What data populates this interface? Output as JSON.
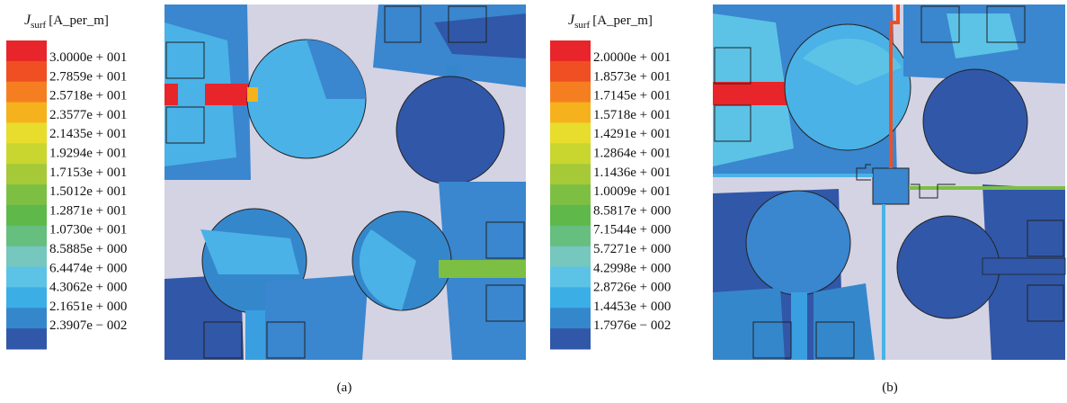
{
  "panels": [
    {
      "legend_symbol": "J",
      "legend_subscript": "surf",
      "legend_unit": "[A_per_m]",
      "legend_labels": [
        "3.0000e + 001",
        "2.7859e + 001",
        "2.5718e + 001",
        "2.3577e + 001",
        "2.1435e + 001",
        "1.9294e + 001",
        "1.7153e + 001",
        "1.5012e + 001",
        "1.2871e + 001",
        "1.0730e + 001",
        "8.5885e + 000",
        "6.4474e + 000",
        "4.3062e + 000",
        "2.1651e + 000",
        "2.3907e − 002"
      ],
      "caption": "(a)"
    },
    {
      "legend_symbol": "J",
      "legend_subscript": "surf",
      "legend_unit": "[A_per_m]",
      "legend_labels": [
        "2.0000e + 001",
        "1.8573e + 001",
        "1.7145e + 001",
        "1.5718e + 001",
        "1.4291e + 001",
        "1.2864e + 001",
        "1.1436e + 001",
        "1.0009e + 001",
        "8.5817e + 000",
        "7.1544e + 000",
        "5.7271e + 000",
        "4.2998e + 000",
        "2.8726e + 000",
        "1.4453e + 000",
        "1.7976e − 002"
      ],
      "caption": "(b)"
    }
  ]
}
